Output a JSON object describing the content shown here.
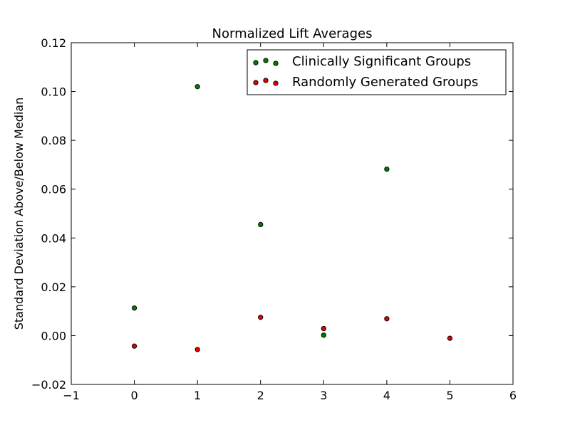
{
  "chart_data": {
    "type": "scatter",
    "title": "Normalized Lift Averages",
    "xlabel": "",
    "ylabel": "Standard Deviation Above/Below Median",
    "xlim": [
      -1,
      6
    ],
    "ylim": [
      -0.02,
      0.12
    ],
    "x_ticks": [
      -1,
      0,
      1,
      2,
      3,
      4,
      5,
      6
    ],
    "x_tick_labels": [
      "−1",
      "0",
      "1",
      "2",
      "3",
      "4",
      "5",
      "6"
    ],
    "y_ticks": [
      -0.02,
      0.0,
      0.02,
      0.04,
      0.06,
      0.08,
      0.1,
      0.12
    ],
    "y_tick_labels": [
      "−0.02",
      "0.00",
      "0.02",
      "0.04",
      "0.06",
      "0.08",
      "0.10",
      "0.12"
    ],
    "grid": false,
    "legend_position": "top-right",
    "series": [
      {
        "name": "Clinically Significant Groups",
        "color": "#007a00",
        "points": [
          {
            "x": 0,
            "y": 0.0113
          },
          {
            "x": 1,
            "y": 0.102
          },
          {
            "x": 2,
            "y": 0.0455
          },
          {
            "x": 3,
            "y": 0.0002
          },
          {
            "x": 4,
            "y": 0.0682
          }
        ]
      },
      {
        "name": "Randomly Generated Groups",
        "color": "#e00000",
        "points": [
          {
            "x": 0,
            "y": -0.0043
          },
          {
            "x": 1,
            "y": -0.0057
          },
          {
            "x": 2,
            "y": 0.0075
          },
          {
            "x": 3,
            "y": 0.0029
          },
          {
            "x": 4,
            "y": 0.0069
          },
          {
            "x": 5,
            "y": -0.0011
          }
        ]
      }
    ]
  }
}
